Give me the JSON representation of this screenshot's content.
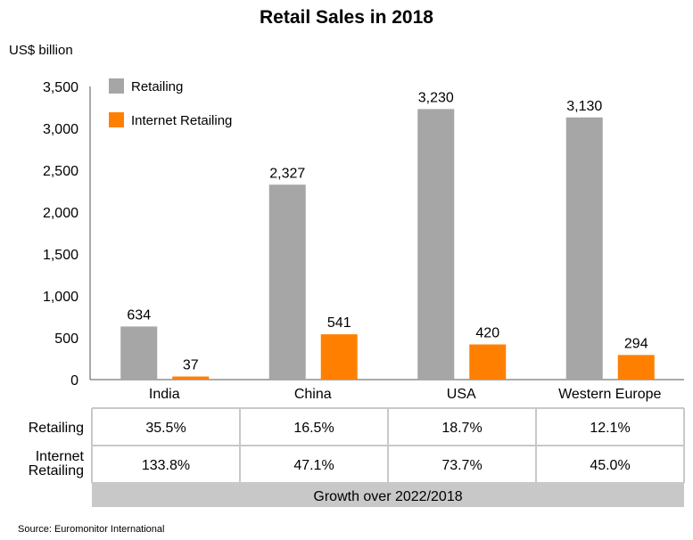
{
  "chart_data": {
    "type": "bar",
    "title": "Retail Sales in 2018",
    "ylabel": "US$ billion",
    "ylim": [
      0,
      3500
    ],
    "yticks": [
      0,
      500,
      1000,
      1500,
      2000,
      2500,
      3000,
      3500
    ],
    "ytick_labels": [
      "0",
      "500",
      "1,000",
      "1,500",
      "2,000",
      "2,500",
      "3,000",
      "3,500"
    ],
    "categories": [
      "India",
      "China",
      "USA",
      "Western Europe"
    ],
    "legend_position": "top-left",
    "grid": false,
    "series": [
      {
        "name": "Retailing",
        "color": "#a6a6a6",
        "values": [
          634,
          2327,
          3230,
          3130
        ],
        "labels": [
          "634",
          "2,327",
          "3,230",
          "3,130"
        ]
      },
      {
        "name": "Internet Retailing",
        "color": "#ff8000",
        "values": [
          37,
          541,
          420,
          294
        ],
        "labels": [
          "37",
          "541",
          "420",
          "294"
        ]
      }
    ]
  },
  "table": {
    "row_labels": [
      "Retailing",
      "Internet Retailing"
    ],
    "rows": [
      [
        "35.5%",
        "16.5%",
        "18.7%",
        "12.1%"
      ],
      [
        "133.8%",
        "47.1%",
        "73.7%",
        "45.0%"
      ]
    ],
    "footer": "Growth over 2022/2018"
  },
  "source": "Source: Euromonitor International"
}
